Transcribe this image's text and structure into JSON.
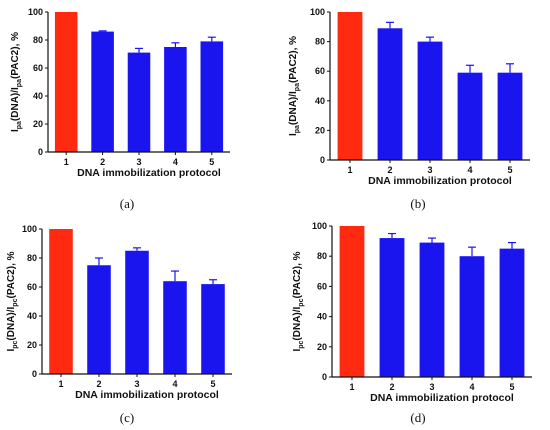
{
  "chart_data": [
    {
      "type": "bar",
      "panel_label": "(a)",
      "categories": [
        "1",
        "2",
        "3",
        "4",
        "5"
      ],
      "values": [
        100,
        86,
        71,
        75,
        79
      ],
      "errors": [
        0,
        0.5,
        3,
        3,
        3
      ],
      "bar_colors": [
        "#ff2a10",
        "#1a14ee",
        "#1a14ee",
        "#1a14ee",
        "#1a14ee"
      ],
      "xlabel": "DNA immobilization protocol",
      "ylabel": {
        "base1": "I",
        "sub1": "pa",
        "mid": "(DNA)/I",
        "sub2": "pa",
        "tail": "(PAC2), %"
      },
      "ylim": [
        0,
        100
      ],
      "yticks": [
        "0",
        "20",
        "40",
        "60",
        "80",
        "100"
      ],
      "grid": false
    },
    {
      "type": "bar",
      "panel_label": "(b)",
      "categories": [
        "1",
        "2",
        "3",
        "4",
        "5"
      ],
      "values": [
        100,
        89,
        80,
        59,
        59
      ],
      "errors": [
        0,
        4,
        3,
        5,
        6
      ],
      "bar_colors": [
        "#ff2a10",
        "#1a14ee",
        "#1a14ee",
        "#1a14ee",
        "#1a14ee"
      ],
      "xlabel": "DNA immobilization protocol",
      "ylabel": {
        "base1": "I",
        "sub1": "pa",
        "mid": "(DNA)/I",
        "sub2": "pa",
        "tail": "(PAC2), %"
      },
      "ylim": [
        0,
        100
      ],
      "yticks": [
        "0",
        "20",
        "40",
        "60",
        "80",
        "100"
      ],
      "grid": false
    },
    {
      "type": "bar",
      "panel_label": "(c)",
      "categories": [
        "1",
        "2",
        "3",
        "4",
        "5"
      ],
      "values": [
        100,
        75,
        85,
        64,
        62
      ],
      "errors": [
        0,
        5,
        2,
        7,
        3
      ],
      "bar_colors": [
        "#ff2a10",
        "#1a14ee",
        "#1a14ee",
        "#1a14ee",
        "#1a14ee"
      ],
      "xlabel": "DNA immobilization protocol",
      "ylabel": {
        "base1": "I",
        "sub1": "pc",
        "mid": "(DNA)/I",
        "sub2": "pc",
        "tail": "(PAC2), %"
      },
      "ylim": [
        0,
        100
      ],
      "yticks": [
        "0",
        "20",
        "40",
        "60",
        "80",
        "100"
      ],
      "grid": false
    },
    {
      "type": "bar",
      "panel_label": "(d)",
      "categories": [
        "1",
        "2",
        "3",
        "4",
        "5"
      ],
      "values": [
        100,
        92,
        89,
        80,
        85
      ],
      "errors": [
        0,
        3,
        3,
        6,
        4
      ],
      "bar_colors": [
        "#ff2a10",
        "#1a14ee",
        "#1a14ee",
        "#1a14ee",
        "#1a14ee"
      ],
      "xlabel": "DNA immobilization protocol",
      "ylabel": {
        "base1": "I",
        "sub1": "pc",
        "mid": "(DNA)/I",
        "sub2": "pc",
        "tail": "(PAC2), %"
      },
      "ylim": [
        0,
        100
      ],
      "yticks": [
        "0",
        "20",
        "40",
        "60",
        "80",
        "100"
      ],
      "grid": false
    }
  ]
}
